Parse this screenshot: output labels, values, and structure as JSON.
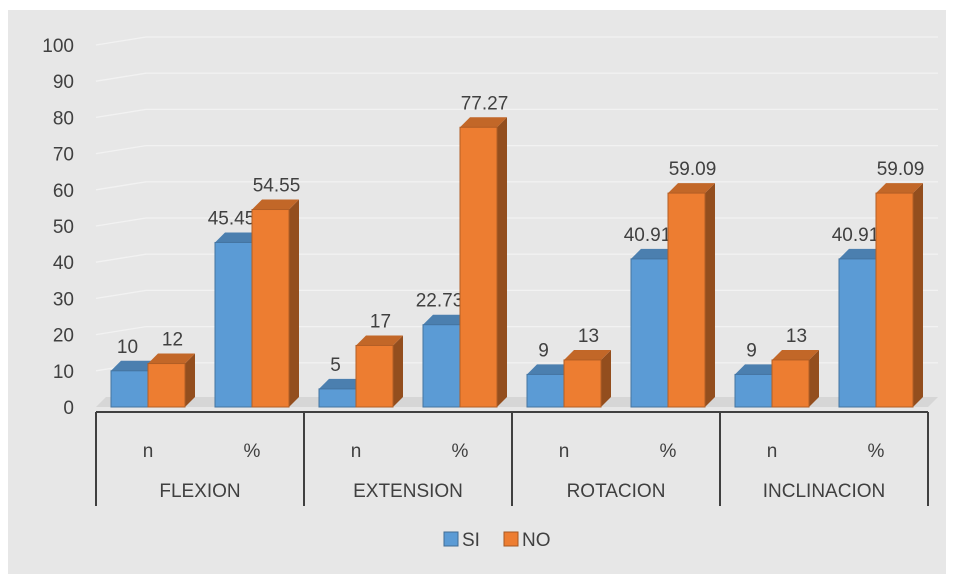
{
  "chart_data": {
    "type": "bar",
    "style": "3d-clustered-column",
    "groups": [
      "FLEXION",
      "EXTENSION",
      "ROTACION",
      "INCLINACION"
    ],
    "subcategories": [
      "n",
      "%"
    ],
    "series": [
      {
        "name": "SI",
        "color": "#5b9bd5",
        "values": [
          10,
          45.45,
          5,
          22.73,
          9,
          40.91,
          9,
          40.91
        ]
      },
      {
        "name": "NO",
        "color": "#ed7d31",
        "values": [
          12,
          54.55,
          17,
          77.27,
          13,
          59.09,
          13,
          59.09
        ]
      }
    ],
    "data_labels": {
      "SI": [
        "10",
        "45.45",
        "5",
        "22.73",
        "9",
        "40.91",
        "9",
        "40.91"
      ],
      "NO": [
        "12",
        "54.55",
        "17",
        "77.27",
        "13",
        "59.09",
        "13",
        "59.09"
      ]
    },
    "yticks": [
      "0",
      "10",
      "20",
      "30",
      "40",
      "50",
      "60",
      "70",
      "80",
      "90",
      "100"
    ],
    "ylim": [
      0,
      100
    ],
    "grid": true,
    "legend_position": "bottom"
  }
}
